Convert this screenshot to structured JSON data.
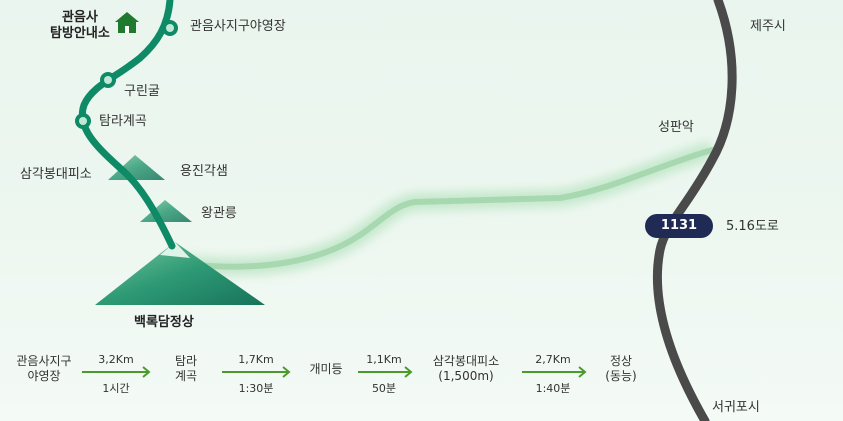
{
  "map": {
    "trail_stops": [
      {
        "label": "관음사지구야영장"
      },
      {
        "label": "구린굴"
      },
      {
        "label": "탐라계곡"
      },
      {
        "label": "삼각봉대피소"
      },
      {
        "label": "용진각샘"
      },
      {
        "label": "왕관릉"
      }
    ],
    "ranger_station": {
      "line1": "관음사",
      "line2": "탐방안내소",
      "icon": "house-icon"
    },
    "summit": "백록담정상",
    "peak_label": "성판악",
    "cities": {
      "north": "제주시",
      "south": "서귀포시"
    },
    "road": {
      "number": "1131",
      "name": "5.16도로"
    },
    "colors": {
      "trail": "#0e8a66",
      "road": "#4a4a4a",
      "secondary_trail": "#a8d8b0",
      "badge": "#1f2a55",
      "arrow": "#4a9b2c"
    }
  },
  "route": {
    "steps": [
      {
        "name_line1": "관음사지구",
        "name_line2": "야영장"
      },
      {
        "name_line1": "탐라",
        "name_line2": "계곡"
      },
      {
        "name_line1": "개미등",
        "name_line2": ""
      },
      {
        "name_line1": "삼각봉대피소",
        "name_line2": "(1,500m)"
      },
      {
        "name_line1": "정상",
        "name_line2": "(동능)"
      }
    ],
    "segments": [
      {
        "distance": "3,2Km",
        "time": "1시간"
      },
      {
        "distance": "1,7Km",
        "time": "1:30분"
      },
      {
        "distance": "1,1Km",
        "time": "50분"
      },
      {
        "distance": "2,7Km",
        "time": "1:40분"
      }
    ]
  }
}
